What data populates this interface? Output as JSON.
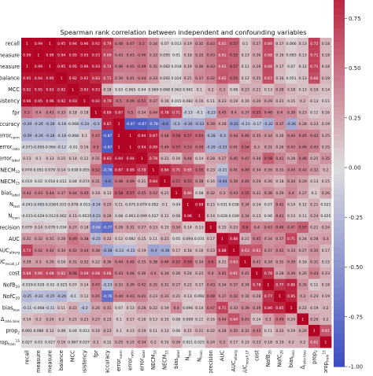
{
  "chart_data": {
    "type": "heatmap",
    "title": "Spearman rank correlation between independent and confounding variables",
    "labels": [
      {
        "t": "recall"
      },
      {
        "t": "F-measure",
        "cut": true
      },
      {
        "t": "G-measure",
        "cut": true
      },
      {
        "t": "balance"
      },
      {
        "t": "MCC"
      },
      {
        "t": "consistency"
      },
      {
        "t": "fpr"
      },
      {
        "t": "accuracy"
      },
      {
        "t": "error",
        "sub": "norm"
      },
      {
        "t": "error",
        "sub": "ratio"
      },
      {
        "t": "error",
        "sub": "label"
      },
      {
        "t": "NECM",
        "sub": "10"
      },
      {
        "t": "NECM",
        "sub": "15"
      },
      {
        "t": "bias",
        "sub": "label"
      },
      {
        "t": "N",
        "sub": "test"
      },
      {
        "t": "N",
        "sub": "train"
      },
      {
        "t": "precision"
      },
      {
        "t": "AUC"
      },
      {
        "t": "AUC",
        "sub": "alberg"
      },
      {
        "t": "AUC",
        "sub": "recall_LF"
      },
      {
        "t": "cost"
      },
      {
        "t": "NofB",
        "sub": "20"
      },
      {
        "t": "NofC",
        "sub": "20"
      },
      {
        "t": "bias",
        "sub": "bias"
      },
      {
        "t": "Δ",
        "sub": "ratio bias"
      },
      {
        "t": "prop",
        "sub": "2"
      },
      {
        "t": "prop",
        "sub": "train",
        "sup": "15"
      }
    ],
    "display_values": [
      [
        "1",
        "0.99",
        "1",
        "0.95",
        "0.94",
        "0.96",
        "0.92",
        "0.79",
        "0.48",
        "0.47",
        "0.5",
        "0.34",
        "0.07",
        "0.013",
        "0.19",
        "0.35",
        "0.43",
        "0.61",
        "0.57",
        "0.1",
        "0.27",
        "0.69",
        "0.17",
        "0.066",
        "0.13",
        "0.72",
        "0.18"
      ],
      [
        "0.99",
        "1",
        "0.99",
        "0.94",
        "0.95",
        "0.95",
        "0.93",
        "0.69",
        "0.43",
        "0.43",
        "0.46",
        "0.33",
        "0.095",
        "0.01",
        "0.18",
        "0.35",
        "0.43",
        "0.61",
        "0.55",
        "0.13",
        "0.26",
        "0.68",
        "0.16",
        "0.083",
        "0.13",
        "0.71",
        "0.18"
      ],
      [
        "1",
        "0.99",
        "1",
        "0.95",
        "0.95",
        "0.96",
        "0.93",
        "0.74",
        "0.46",
        "0.45",
        "0.49",
        "0.35",
        "0.082",
        "0.018",
        "0.19",
        "0.36",
        "0.43",
        "0.61",
        "0.57",
        "0.11",
        "0.26",
        "0.68",
        "0.17",
        "0.07",
        "0.12",
        "0.71",
        "0.18"
      ],
      [
        "0.95",
        "0.94",
        "0.95",
        "1",
        "0.92",
        "0.92",
        "0.83",
        "0.71",
        "0.39",
        "0.41",
        "0.44",
        "0.33",
        "0.092",
        "0.024",
        "0.21",
        "0.37",
        "0.42",
        "0.62",
        "0.55",
        "0.12",
        "0.25",
        "0.67",
        "0.16",
        "0.051",
        "0.13",
        "0.66",
        "0.19"
      ],
      [
        "0.92",
        "0.95",
        "0.93",
        "0.92",
        "1",
        "0.93",
        "0.93",
        "0.18",
        "0.03",
        "0.065",
        "0.04",
        "0.069",
        "0.068",
        "0.063",
        "0.061",
        "0.1",
        "0.2",
        "0.3",
        "0.08",
        "0.23",
        "0.21",
        "0.13",
        "0.28",
        "0.18",
        "0.13",
        "0.19",
        "0.14"
      ],
      [
        "0.96",
        "0.95",
        "0.96",
        "0.92",
        "0.93",
        "1",
        "0.92",
        "0.79",
        "0.5",
        "0.49",
        "0.51",
        "0.37",
        "0.16",
        "0.015",
        "0.082",
        "0.16",
        "0.11",
        "0.23",
        "0.19",
        "0.16",
        "0.26",
        "0.29",
        "0.21",
        "0.15",
        "0.2",
        "0.13",
        "0.11"
      ],
      [
        "0.5",
        "0.4",
        "0.43",
        "0.33",
        "0.18",
        "0.18",
        "1",
        "0.89",
        "0.87",
        "0.5",
        "0.34",
        "0.44",
        "0.78",
        "0.71",
        "-0.13",
        "-0.1",
        "-0.23",
        "0.45",
        "0.4",
        "0.37",
        "0.55",
        "0.46",
        "0.4",
        "0.39",
        "0.23",
        "0.11",
        "0.16"
      ],
      [
        "-0.29",
        "-0.26",
        "-0.28",
        "-0.18",
        "-0.068",
        "-0.24",
        "-0.3",
        "0.87",
        "1",
        "-0.87",
        "-0.87",
        "-0.78",
        "-0.6",
        "-0.3",
        "-0.36",
        "-0.33",
        "0.39",
        "0.28",
        "-0.42",
        "-0.23",
        "-0.17",
        "-0.32",
        "0.37",
        "-0.36",
        "0.28",
        "0.23",
        "0.19"
      ],
      [
        "-0.29",
        "-0.26",
        "-0.28",
        "-0.18",
        "-0.068",
        "0.1",
        "0.47",
        "-0.87",
        "1",
        "1",
        "0.94",
        "0.87",
        "0.48",
        "0.58",
        "0.57",
        "0.54",
        "-0.28",
        "-0.3",
        "0.44",
        "0.46",
        "0.35",
        "0.34",
        "0.26",
        "0.44",
        "0.45",
        "0.43",
        "0.25"
      ],
      [
        "-0.071",
        "-0.095",
        "-0.066",
        "-0.12",
        "-0.02",
        "0.16",
        "0.5",
        "-0.87",
        "1",
        "1",
        "0.94",
        "0.89",
        "0.49",
        "0.57",
        "0.53",
        "0.49",
        "-0.29",
        "-0.33",
        "0.41",
        "0.54",
        "0.3",
        "0.31",
        "0.28",
        "0.43",
        "0.46",
        "0.43",
        "0.25"
      ],
      [
        "0.13",
        "0.1",
        "0.13",
        "0.15",
        "0.14",
        "0.12",
        "0.31",
        "0.83",
        "0.94",
        "0.94",
        "1",
        "0.78",
        "0.21",
        "0.16",
        "0.44",
        "0.14",
        "0.28",
        "0.27",
        "0.45",
        "0.47",
        "0.34",
        "0.58",
        "0.41",
        "0.28",
        "0.46",
        "0.25",
        "0.35"
      ],
      [
        "0.074",
        "0.051",
        "0.079",
        "0.14",
        "0.038",
        "0.055",
        "0.52",
        "-0.78",
        "0.87",
        "0.89",
        "0.78",
        "1",
        "0.84",
        "0.71",
        "0.65",
        "0.55",
        "0.23",
        "-0.21",
        "0.41",
        "0.49",
        "0.34",
        "0.35",
        "0.33",
        "0.43",
        "0.42",
        "0.32",
        "0.2"
      ],
      [
        "0.019",
        "0.02",
        "0.018",
        "0.012",
        "0.04",
        "0.074",
        "0.31",
        "-0.6",
        "0.48",
        "0.49",
        "0.21",
        "0.84",
        "1",
        "0.57",
        "0.55",
        "0.38",
        "0.16",
        "-0.44",
        "0.39",
        "0.45",
        "0.29",
        "0.26",
        "0.18",
        "0.34",
        "0.29",
        "0.13",
        "0.15"
      ],
      [
        "0.43",
        "0.43",
        "0.44",
        "0.37",
        "0.44",
        "0.45",
        "0.18",
        "0.13",
        "0.58",
        "0.57",
        "0.45",
        "0.43",
        "0.21",
        "1",
        "0.66",
        "0.08",
        "0.32",
        "0.3",
        "0.43",
        "0.55",
        "0.31",
        "0.38",
        "0.29",
        "0.4",
        "0.27",
        "0.1",
        "0.26"
      ],
      [
        "-0.041",
        "-0.065",
        "-0.038",
        "0.025",
        "0.078",
        "-0.023",
        "-0.24",
        "0.25",
        "0.11",
        "0.075",
        "0.079",
        "0.052",
        "0.1",
        "0.04",
        "1",
        "0.98",
        "0.15",
        "0.031",
        "0.038",
        "0.34",
        "0.14",
        "0.07",
        "0.42",
        "0.14",
        "0.12",
        "0.21",
        "0.021"
      ],
      [
        "-0.015",
        "-0.029",
        "-0.012",
        "0.062",
        "0.15",
        "-0.0035",
        "-0.23",
        "0.26",
        "0.08",
        "0.063",
        "0.099",
        "0.037",
        "0.11",
        "0.08",
        "0.98",
        "1",
        "0.14",
        "0.028",
        "0.039",
        "0.34",
        "0.13",
        "0.06",
        "0.41",
        "0.13",
        "0.11",
        "0.24",
        "0.025"
      ],
      [
        "0.079",
        "0.14",
        "0.079",
        "0.034",
        "0.27",
        "0.18",
        "-0.64",
        "-0.77",
        "0.28",
        "0.31",
        "0.27",
        "0.23",
        "0.15",
        "0.34",
        "0.14",
        "0.13",
        "1",
        "0.15",
        "0.23",
        "0.6",
        "0.4",
        "0.43",
        "0.48",
        "0.47",
        "0.57",
        "0.22",
        "0.24"
      ],
      [
        "0.31",
        "0.32",
        "0.31",
        "0.28",
        "0.49",
        "0.38",
        "-0.25",
        "0.22",
        "0.12",
        "0.082",
        "0.15",
        "0.11",
        "0.21",
        "0.05",
        "0.094",
        "0.031",
        "0.17",
        "1",
        "0.88",
        "0.21",
        "0.45",
        "0.34",
        "0.37",
        "0.71",
        "0.24",
        "0.28",
        "0.3"
      ],
      [
        "0.72",
        "0.42",
        "0.42",
        "0.34",
        "0.42",
        "0.44",
        "0.38",
        "-0.38",
        "-0.23",
        "-0.22",
        "0.19",
        "-0.4",
        "-0.36",
        "0.17",
        "0.18",
        "0.16",
        "0.23",
        "0.88",
        "1",
        "0.63",
        "0.61",
        "0.37",
        "0.42",
        "0.33",
        "0.27",
        "0.35",
        "0.17"
      ],
      [
        "0.29",
        "0.3",
        "0.29",
        "0.16",
        "0.31",
        "0.32",
        "0.22",
        "0.36",
        "0.44",
        "0.45",
        "0.35",
        "0.38",
        "0.46",
        "0.52",
        "0.59",
        "0.34",
        "0.6",
        "0.21",
        "0.63",
        "1",
        "0.41",
        "0.34",
        "0.32",
        "0.39",
        "0.16",
        "0.31",
        "0.15"
      ],
      [
        "0.68",
        "0.66",
        "0.68",
        "0.62",
        "0.56",
        "0.68",
        "0.68",
        "0.66",
        "0.43",
        "0.44",
        "0.36",
        "0.4",
        "0.34",
        "0.26",
        "0.24",
        "0.23",
        "0.4",
        "0.45",
        "0.61",
        "0.41",
        "1",
        "0.78",
        "0.28",
        "0.39",
        "0.26",
        "0.43",
        "0.23"
      ],
      [
        "-0.019",
        "-0.028",
        "-0.02",
        "-0.025",
        "0.07",
        "0.14",
        "0.47",
        "-0.23",
        "0.33",
        "0.39",
        "0.42",
        "0.35",
        "0.31",
        "0.27",
        "0.21",
        "0.17",
        "0.43",
        "0.34",
        "0.37",
        "0.34",
        "0.78",
        "1",
        "0.77",
        "0.86",
        "0.35",
        "0.11",
        "0.18"
      ],
      [
        "-0.25",
        "-0.22",
        "-0.25",
        "-0.26",
        "-0.1",
        "0.12",
        "0.41",
        "-0.76",
        "0.44",
        "0.43",
        "0.41",
        "0.23",
        "0.31",
        "0.21",
        "0.13",
        "0.092",
        "0.48",
        "0.37",
        "0.42",
        "0.32",
        "0.28",
        "0.77",
        "1",
        "0.85",
        "0.3",
        "0.23",
        "0.19"
      ],
      [
        "-0.11",
        "-0.068",
        "-0.11",
        "0.11",
        "0.22",
        "-0.2",
        "0.26",
        "0.31",
        "0.07",
        "0.13",
        "0.28",
        "0.22",
        "0.19",
        "0.4",
        "0.096",
        "0.14",
        "0.47",
        "0.71",
        "0.33",
        "0.39",
        "0.39",
        "0.86",
        "0.85",
        "1",
        "0.22",
        "0.19",
        "0.2"
      ],
      [
        "0.14",
        "0.2",
        "0.24",
        "0.2",
        "0.21",
        "0.23",
        "0.27",
        "0.23",
        "0.1",
        "0.17",
        "0.16",
        "0.13",
        "0.15",
        "0.08",
        "0.099",
        "0.11",
        "0.16",
        "0.44",
        "0.64",
        "0.43",
        "0.14",
        "0.3",
        "0.49",
        "0.24",
        "1",
        "0.26",
        "0.2"
      ],
      [
        "0.091",
        "0.086",
        "0.12",
        "0.08",
        "0.04",
        "0.012",
        "0.16",
        "0.23",
        "0.1",
        "0.13",
        "0.19",
        "0.11",
        "0.13",
        "0.06",
        "0.15",
        "0.21",
        "0.22",
        "0.28",
        "0.35",
        "0.31",
        "0.43",
        "0.11",
        "0.23",
        "0.19",
        "0.26",
        "1",
        "0.61"
      ],
      [
        "0.027",
        "0.03",
        "0.027",
        "0.16",
        "0.067",
        "0.037",
        "0.2",
        "0.12",
        "0.25",
        "0.25",
        "0.34",
        "0.2",
        "0.15",
        "0.26",
        "0.021",
        "0.025",
        "0.24",
        "0.3",
        "0.17",
        "0.15",
        "0.23",
        "0.18",
        "0.19",
        "0.2",
        "0.2",
        "0.61",
        "1"
      ]
    ],
    "vmin": -1,
    "vmax": 1,
    "colormap": "coolwarm",
    "colorbar_ticks": [
      "1.0",
      "0.75",
      "0.50",
      "0.25",
      "0.00",
      "-0.25",
      "-0.50",
      "-0.75",
      "-1.00"
    ],
    "colors": {
      "low": "#3b4cc0",
      "mid": "#dddddd",
      "high": "#b40426"
    }
  }
}
